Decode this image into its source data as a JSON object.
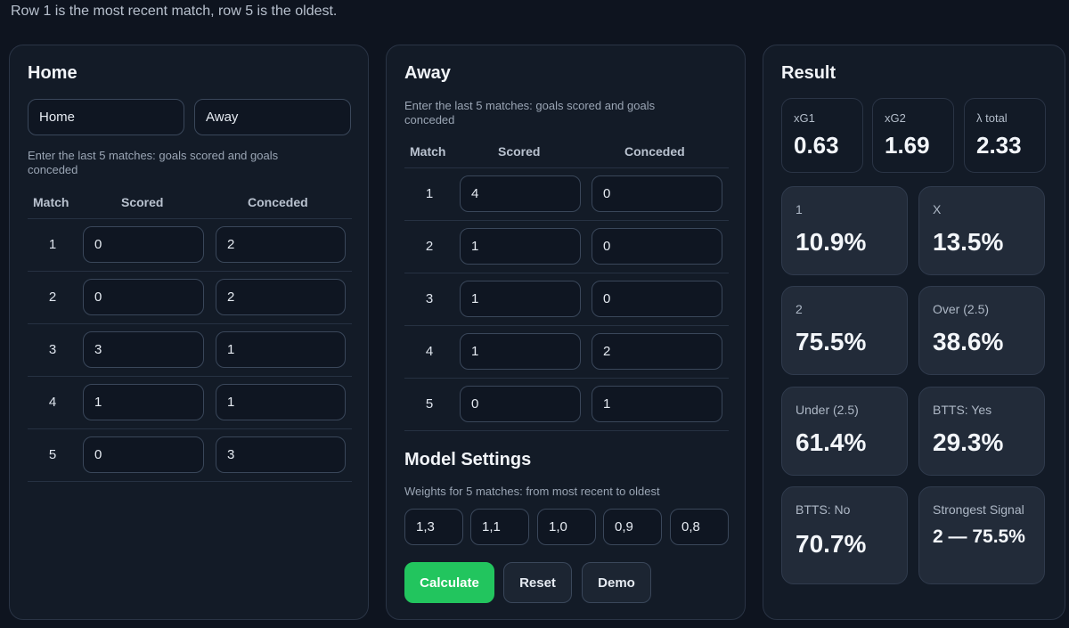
{
  "note": "Row 1 is the most recent match, row 5 is the oldest.",
  "home": {
    "title": "Home",
    "team_home": "Home",
    "team_away": "Away",
    "hint": "Enter the last 5 matches: goals scored and goals conceded",
    "columns": {
      "match": "Match",
      "scored": "Scored",
      "conceded": "Conceded"
    },
    "rows": [
      {
        "n": "1",
        "scored": "0",
        "conceded": "2"
      },
      {
        "n": "2",
        "scored": "0",
        "conceded": "2"
      },
      {
        "n": "3",
        "scored": "3",
        "conceded": "1"
      },
      {
        "n": "4",
        "scored": "1",
        "conceded": "1"
      },
      {
        "n": "5",
        "scored": "0",
        "conceded": "3"
      }
    ]
  },
  "away": {
    "title": "Away",
    "hint": "Enter the last 5 matches: goals scored and goals conceded",
    "columns": {
      "match": "Match",
      "scored": "Scored",
      "conceded": "Conceded"
    },
    "rows": [
      {
        "n": "1",
        "scored": "4",
        "conceded": "0"
      },
      {
        "n": "2",
        "scored": "1",
        "conceded": "0"
      },
      {
        "n": "3",
        "scored": "1",
        "conceded": "0"
      },
      {
        "n": "4",
        "scored": "1",
        "conceded": "2"
      },
      {
        "n": "5",
        "scored": "0",
        "conceded": "1"
      }
    ]
  },
  "settings": {
    "title": "Model Settings",
    "hint": "Weights for 5 matches: from most recent to oldest",
    "weights": [
      "1,3",
      "1,1",
      "1,0",
      "0,9",
      "0,8"
    ],
    "calculate": "Calculate",
    "reset": "Reset",
    "demo": "Demo"
  },
  "result": {
    "title": "Result",
    "xg1": {
      "label": "xG1",
      "value": "0.63"
    },
    "xg2": {
      "label": "xG2",
      "value": "1.69"
    },
    "lambda": {
      "label": "λ total",
      "value": "2.33"
    },
    "cards": [
      {
        "label": "1",
        "value": "10.9%"
      },
      {
        "label": "X",
        "value": "13.5%"
      },
      {
        "label": "2",
        "value": "75.5%"
      },
      {
        "label": "Over (2.5)",
        "value": "38.6%"
      },
      {
        "label": "Under (2.5)",
        "value": "61.4%"
      },
      {
        "label": "BTTS: Yes",
        "value": "29.3%"
      },
      {
        "label": "BTTS: No",
        "value": "70.7%"
      },
      {
        "label": "Strongest Signal",
        "value": "2 — 75.5%"
      }
    ]
  },
  "colors": {
    "accent": "#22c55e",
    "background": "#0e141f",
    "panel": "#131b27"
  }
}
